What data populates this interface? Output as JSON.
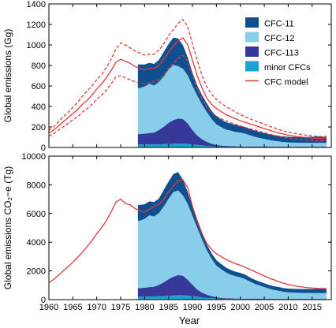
{
  "xlabel": "Year",
  "chart_data": [
    {
      "type": "area",
      "panel": "top",
      "ylabel": "Global emissions (Gg)",
      "xlim": [
        1960,
        2019
      ],
      "ylim": [
        0,
        1400
      ],
      "x_ticks": [
        1960,
        1965,
        1970,
        1975,
        1980,
        1985,
        1990,
        1995,
        2000,
        2005,
        2010,
        2015
      ],
      "y_ticks": [
        0,
        200,
        400,
        600,
        800,
        1000,
        1200,
        1400
      ],
      "grid": false,
      "legend_position": "top-right",
      "stack_order": [
        "minor CFCs",
        "CFC-113",
        "CFC-12",
        "CFC-11"
      ],
      "stack_x": [
        1978.6,
        1979,
        1980,
        1981,
        1982,
        1983,
        1984,
        1985,
        1986,
        1987,
        1988,
        1989,
        1990,
        1991,
        1992,
        1993,
        1994,
        1995,
        1996,
        1997,
        1998,
        1999,
        2000,
        2001,
        2002,
        2003,
        2004,
        2005,
        2006,
        2007,
        2008,
        2009,
        2010,
        2011,
        2012,
        2013,
        2014,
        2015,
        2016,
        2017,
        2018
      ],
      "series": [
        {
          "name": "minor CFCs",
          "color": "#1aa3d1",
          "values": [
            30,
            30,
            30,
            30,
            30,
            30,
            32,
            34,
            36,
            38,
            38,
            35,
            30,
            25,
            20,
            15,
            12,
            10,
            8,
            7,
            6,
            5,
            5,
            5,
            4,
            4,
            4,
            4,
            4,
            3,
            3,
            3,
            3,
            3,
            3,
            3,
            3,
            3,
            3,
            3,
            3
          ]
        },
        {
          "name": "CFC-113",
          "color": "#36399a",
          "values": [
            100,
            100,
            105,
            110,
            115,
            140,
            170,
            205,
            230,
            245,
            240,
            200,
            140,
            90,
            60,
            40,
            25,
            15,
            10,
            8,
            7,
            6,
            5,
            5,
            5,
            5,
            4,
            4,
            4,
            4,
            4,
            4,
            4,
            4,
            4,
            4,
            4,
            4,
            4,
            4,
            4
          ]
        },
        {
          "name": "CFC-12",
          "color": "#87ceeb",
          "values": [
            450,
            450,
            460,
            480,
            460,
            470,
            490,
            520,
            540,
            510,
            490,
            470,
            430,
            390,
            340,
            290,
            240,
            200,
            180,
            160,
            150,
            140,
            135,
            125,
            110,
            95,
            85,
            75,
            65,
            58,
            52,
            46,
            42,
            40,
            39,
            38,
            38,
            37,
            37,
            37,
            37
          ]
        },
        {
          "name": "CFC-11",
          "color": "#0e4f8f",
          "values": [
            230,
            230,
            215,
            205,
            210,
            215,
            240,
            250,
            265,
            270,
            230,
            175,
            130,
            100,
            90,
            85,
            80,
            80,
            75,
            72,
            70,
            68,
            65,
            65,
            62,
            60,
            58,
            57,
            56,
            55,
            55,
            55,
            55,
            55,
            56,
            57,
            58,
            60,
            64,
            62,
            58
          ]
        }
      ],
      "lines": [
        {
          "name": "CFC model",
          "color": "#e03a3a",
          "style": "solid",
          "x": [
            1960,
            1961,
            1962,
            1963,
            1964,
            1965,
            1966,
            1967,
            1968,
            1969,
            1970,
            1971,
            1972,
            1973,
            1974,
            1975,
            1976,
            1977,
            1978,
            1979,
            1980,
            1981,
            1982,
            1983,
            1984,
            1985,
            1986,
            1987,
            1988,
            1989,
            1990,
            1991,
            1992,
            1993,
            1994,
            1995,
            1996,
            1997,
            1998,
            1999,
            2000,
            2001,
            2002,
            2003,
            2004,
            2005,
            2006,
            2007,
            2008,
            2009,
            2010,
            2011,
            2012,
            2013,
            2014,
            2015,
            2016,
            2017,
            2018
          ],
          "values": [
            140,
            170,
            210,
            250,
            290,
            330,
            370,
            420,
            460,
            510,
            570,
            620,
            680,
            750,
            830,
            860,
            840,
            820,
            790,
            770,
            760,
            770,
            770,
            800,
            860,
            930,
            990,
            1040,
            1070,
            1000,
            850,
            700,
            580,
            480,
            420,
            380,
            350,
            320,
            300,
            280,
            260,
            245,
            230,
            215,
            200,
            185,
            170,
            155,
            140,
            130,
            120,
            112,
            105,
            100,
            95,
            92,
            90,
            90,
            92
          ]
        },
        {
          "name": "CFC model upper",
          "color": "#e03a3a",
          "style": "dashed",
          "x": [
            1960,
            1961,
            1962,
            1963,
            1964,
            1965,
            1966,
            1967,
            1968,
            1969,
            1970,
            1971,
            1972,
            1973,
            1974,
            1975,
            1976,
            1977,
            1978,
            1979,
            1980,
            1981,
            1982,
            1983,
            1984,
            1985,
            1986,
            1987,
            1988,
            1989,
            1990,
            1991,
            1992,
            1993,
            1994,
            1995,
            1996,
            1997,
            1998,
            1999,
            2000,
            2001,
            2002,
            2003,
            2004,
            2005,
            2006,
            2007,
            2008,
            2009,
            2010,
            2011,
            2012,
            2013,
            2014,
            2015,
            2016,
            2017,
            2018
          ],
          "values": [
            170,
            200,
            250,
            300,
            340,
            390,
            440,
            500,
            550,
            600,
            660,
            710,
            780,
            860,
            960,
            1020,
            1000,
            970,
            940,
            920,
            900,
            910,
            910,
            950,
            1010,
            1090,
            1150,
            1210,
            1250,
            1180,
            1010,
            850,
            700,
            590,
            520,
            470,
            430,
            400,
            370,
            345,
            320,
            300,
            280,
            260,
            245,
            228,
            210,
            192,
            175,
            162,
            150,
            140,
            132,
            125,
            118,
            112,
            108,
            106,
            108
          ]
        },
        {
          "name": "CFC model lower",
          "color": "#e03a3a",
          "style": "dashed",
          "x": [
            1960,
            1961,
            1962,
            1963,
            1964,
            1965,
            1966,
            1967,
            1968,
            1969,
            1970,
            1971,
            1972,
            1973,
            1974,
            1975,
            1976,
            1977,
            1978,
            1979,
            1980,
            1981,
            1982,
            1983,
            1984,
            1985,
            1986,
            1987,
            1988,
            1989,
            1990,
            1991,
            1992,
            1993,
            1994,
            1995,
            1996,
            1997,
            1998,
            1999,
            2000,
            2001,
            2002,
            2003,
            2004,
            2005,
            2006,
            2007,
            2008,
            2009,
            2010,
            2011,
            2012,
            2013,
            2014,
            2015,
            2016,
            2017,
            2018
          ],
          "values": [
            110,
            135,
            170,
            200,
            235,
            270,
            300,
            345,
            380,
            420,
            470,
            510,
            560,
            620,
            690,
            700,
            680,
            660,
            640,
            630,
            620,
            630,
            640,
            660,
            710,
            770,
            820,
            870,
            900,
            840,
            700,
            570,
            470,
            390,
            340,
            305,
            280,
            260,
            240,
            225,
            210,
            195,
            182,
            170,
            158,
            145,
            132,
            120,
            108,
            100,
            92,
            86,
            80,
            76,
            72,
            70,
            68,
            68,
            70
          ]
        }
      ],
      "legend": [
        {
          "label": "CFC-11",
          "kind": "box",
          "color": "#0e4f8f"
        },
        {
          "label": "CFC-12",
          "kind": "box",
          "color": "#87ceeb"
        },
        {
          "label": "CFC-113",
          "kind": "box",
          "color": "#36399a"
        },
        {
          "label": "minor CFCs",
          "kind": "box",
          "color": "#1aa3d1"
        },
        {
          "label": "CFC model",
          "kind": "line",
          "color": "#e03a3a"
        }
      ]
    },
    {
      "type": "area",
      "panel": "bottom",
      "ylabel": "Global emissions CO₂−e (Tg)",
      "xlim": [
        1960,
        2019
      ],
      "ylim": [
        0,
        10000
      ],
      "x_ticks": [
        1960,
        1965,
        1970,
        1975,
        1980,
        1985,
        1990,
        1995,
        2000,
        2005,
        2010,
        2015
      ],
      "y_ticks": [
        0,
        2000,
        4000,
        6000,
        8000,
        10000
      ],
      "grid": false,
      "stack_order": [
        "minor CFCs",
        "CFC-113",
        "CFC-12",
        "CFC-11"
      ],
      "stack_x": [
        1978.6,
        1979,
        1980,
        1981,
        1982,
        1983,
        1984,
        1985,
        1986,
        1987,
        1988,
        1989,
        1990,
        1991,
        1992,
        1993,
        1994,
        1995,
        1996,
        1997,
        1998,
        1999,
        2000,
        2001,
        2002,
        2003,
        2004,
        2005,
        2006,
        2007,
        2008,
        2009,
        2010,
        2011,
        2012,
        2013,
        2014,
        2015,
        2016,
        2017,
        2018
      ],
      "series": [
        {
          "name": "minor CFCs",
          "color": "#1aa3d1",
          "values": [
            200,
            200,
            210,
            220,
            220,
            230,
            250,
            270,
            290,
            310,
            310,
            280,
            240,
            200,
            160,
            120,
            100,
            80,
            60,
            50,
            45,
            40,
            40,
            35,
            30,
            30,
            30,
            28,
            28,
            25,
            25,
            25,
            25,
            25,
            25,
            25,
            25,
            25,
            25,
            25,
            25
          ]
        },
        {
          "name": "CFC-113",
          "color": "#36399a",
          "values": [
            600,
            600,
            620,
            650,
            680,
            800,
            950,
            1150,
            1300,
            1400,
            1350,
            1100,
            800,
            500,
            330,
            220,
            140,
            90,
            60,
            45,
            40,
            35,
            30,
            28,
            26,
            25,
            24,
            23,
            22,
            22,
            21,
            21,
            21,
            21,
            21,
            21,
            21,
            21,
            21,
            21,
            21
          ]
        },
        {
          "name": "CFC-12",
          "color": "#87ceeb",
          "values": [
            4700,
            4700,
            4800,
            5000,
            4900,
            5000,
            5300,
            5600,
            5900,
            5900,
            5600,
            5300,
            4800,
            4300,
            3700,
            3100,
            2600,
            2200,
            2000,
            1800,
            1650,
            1550,
            1480,
            1370,
            1200,
            1050,
            930,
            820,
            710,
            630,
            570,
            500,
            460,
            440,
            430,
            420,
            420,
            410,
            410,
            410,
            410
          ]
        },
        {
          "name": "CFC-11",
          "color": "#0e4f8f",
          "values": [
            1100,
            1100,
            1020,
            980,
            1000,
            1020,
            1150,
            1200,
            1260,
            1280,
            1100,
            820,
            620,
            480,
            430,
            400,
            380,
            380,
            360,
            340,
            330,
            320,
            310,
            310,
            290,
            280,
            275,
            270,
            265,
            260,
            260,
            260,
            260,
            260,
            265,
            270,
            275,
            285,
            300,
            295,
            275
          ]
        }
      ],
      "lines": [
        {
          "name": "CFC model",
          "color": "#e03a3a",
          "style": "solid",
          "x": [
            1960,
            1961,
            1962,
            1963,
            1964,
            1965,
            1966,
            1967,
            1968,
            1969,
            1970,
            1971,
            1972,
            1973,
            1974,
            1975,
            1976,
            1977,
            1978,
            1979,
            1980,
            1981,
            1982,
            1983,
            1984,
            1985,
            1986,
            1987,
            1988,
            1989,
            1990,
            1991,
            1992,
            1993,
            1994,
            1995,
            1996,
            1997,
            1998,
            1999,
            2000,
            2001,
            2002,
            2003,
            2004,
            2005,
            2006,
            2007,
            2008,
            2009,
            2010,
            2011,
            2012,
            2013,
            2014,
            2015,
            2016,
            2017,
            2018
          ],
          "values": [
            1200,
            1400,
            1700,
            2000,
            2300,
            2600,
            2950,
            3300,
            3700,
            4100,
            4600,
            5000,
            5500,
            6100,
            6800,
            7000,
            6700,
            6600,
            6350,
            6200,
            6100,
            6300,
            6500,
            6650,
            7000,
            7500,
            7900,
            8300,
            8350,
            7800,
            6500,
            5500,
            4600,
            3900,
            3500,
            3200,
            3000,
            2800,
            2650,
            2500,
            2400,
            2250,
            2100,
            1950,
            1800,
            1650,
            1500,
            1380,
            1250,
            1150,
            1050,
            980,
            920,
            880,
            840,
            810,
            790,
            770,
            780
          ]
        }
      ]
    }
  ]
}
